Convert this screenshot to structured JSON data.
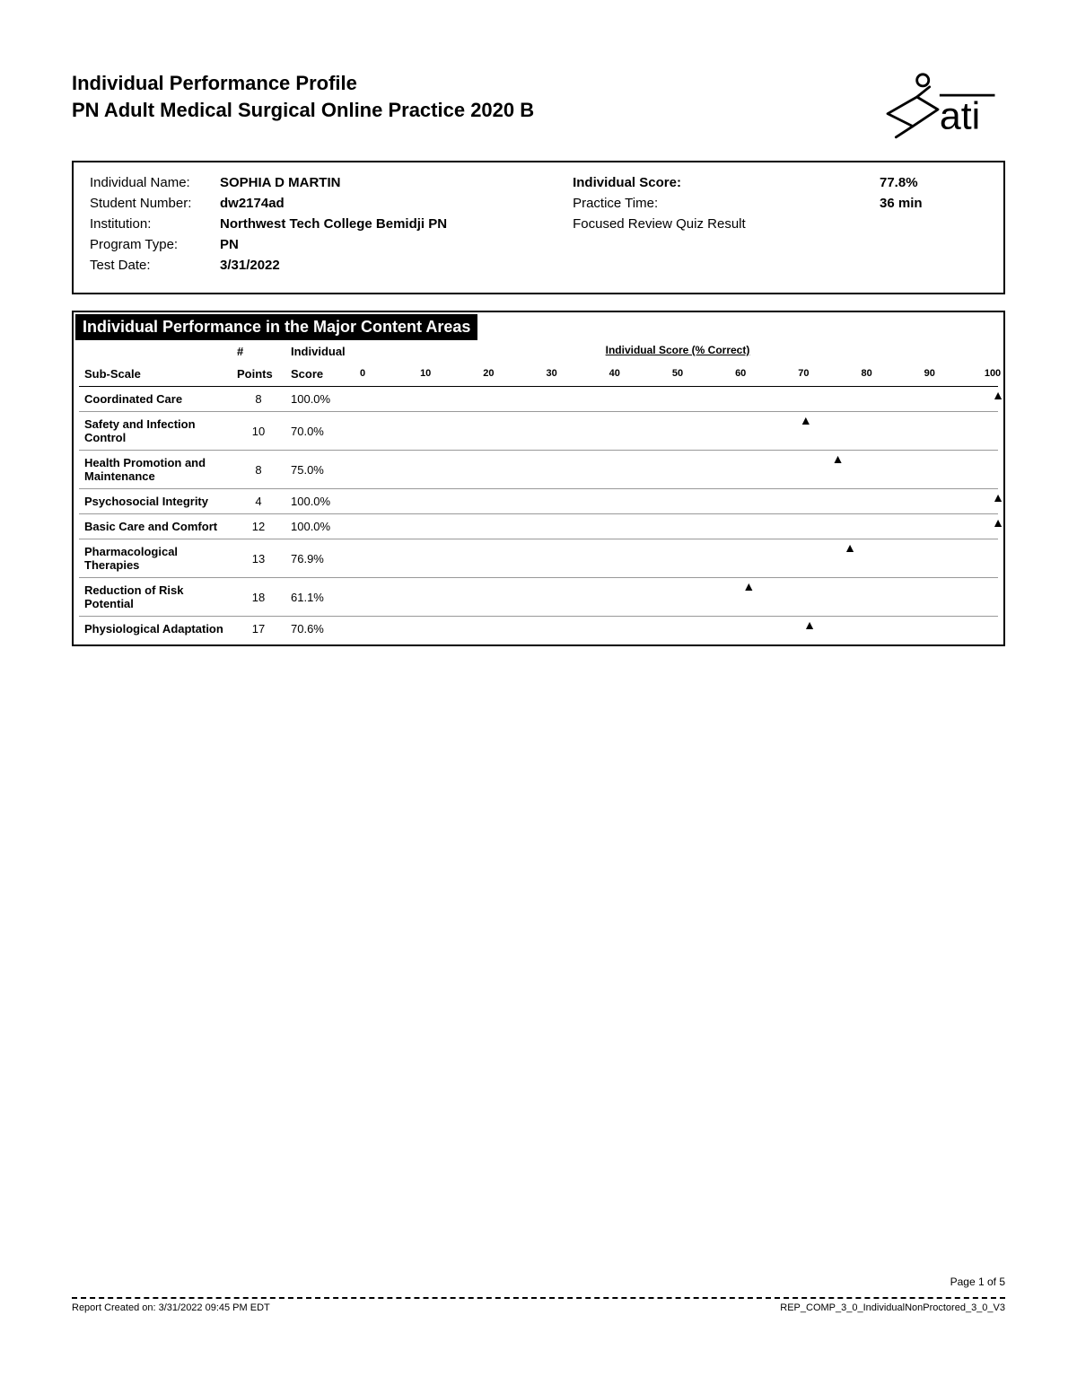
{
  "header": {
    "title1": "Individual Performance Profile",
    "title2": "PN Adult Medical Surgical Online Practice 2020 B",
    "logo_text": "ati"
  },
  "info": {
    "left": [
      {
        "label": "Individual Name:",
        "value": "SOPHIA D MARTIN"
      },
      {
        "label": "Student Number:",
        "value": "dw2174ad"
      },
      {
        "label": "Institution:",
        "value": "Northwest Tech College Bemidji PN"
      },
      {
        "label": "Program Type:",
        "value": "PN"
      },
      {
        "label": "Test Date:",
        "value": "3/31/2022"
      }
    ],
    "right_labels": [
      "Individual Score:",
      "Practice Time:",
      "Focused Review Quiz Result"
    ],
    "right_values": [
      "77.8%",
      "36 min",
      ""
    ]
  },
  "section": {
    "title": "Individual Performance in the Major Content Areas",
    "columns": {
      "subscale": "Sub-Scale",
      "points_hash": "#",
      "points": "Points",
      "indiv": "Individual",
      "score": "Score",
      "chart_header": "Individual Score (% Correct)"
    },
    "axis": {
      "min": 0,
      "max": 100,
      "ticks": [
        0,
        10,
        20,
        30,
        40,
        50,
        60,
        70,
        80,
        90,
        100
      ]
    },
    "rows": [
      {
        "name": "Coordinated Care",
        "points": 8,
        "score": "100.0%",
        "value": 100.0
      },
      {
        "name": "Safety and Infection Control",
        "points": 10,
        "score": "70.0%",
        "value": 70.0
      },
      {
        "name": "Health Promotion and Maintenance",
        "points": 8,
        "score": "75.0%",
        "value": 75.0
      },
      {
        "name": "Psychosocial Integrity",
        "points": 4,
        "score": "100.0%",
        "value": 100.0
      },
      {
        "name": "Basic Care and Comfort",
        "points": 12,
        "score": "100.0%",
        "value": 100.0
      },
      {
        "name": "Pharmacological Therapies",
        "points": 13,
        "score": "76.9%",
        "value": 76.9
      },
      {
        "name": "Reduction of Risk Potential",
        "points": 18,
        "score": "61.1%",
        "value": 61.1
      },
      {
        "name": "Physiological Adaptation",
        "points": 17,
        "score": "70.6%",
        "value": 70.6
      }
    ],
    "marker_glyph": "▲",
    "marker_color": "#000000"
  },
  "footer": {
    "page": "Page 1 of 5",
    "left": "Report Created on: 3/31/2022 09:45 PM EDT",
    "right": "REP_COMP_3_0_IndividualNonProctored_3_0_V3"
  }
}
